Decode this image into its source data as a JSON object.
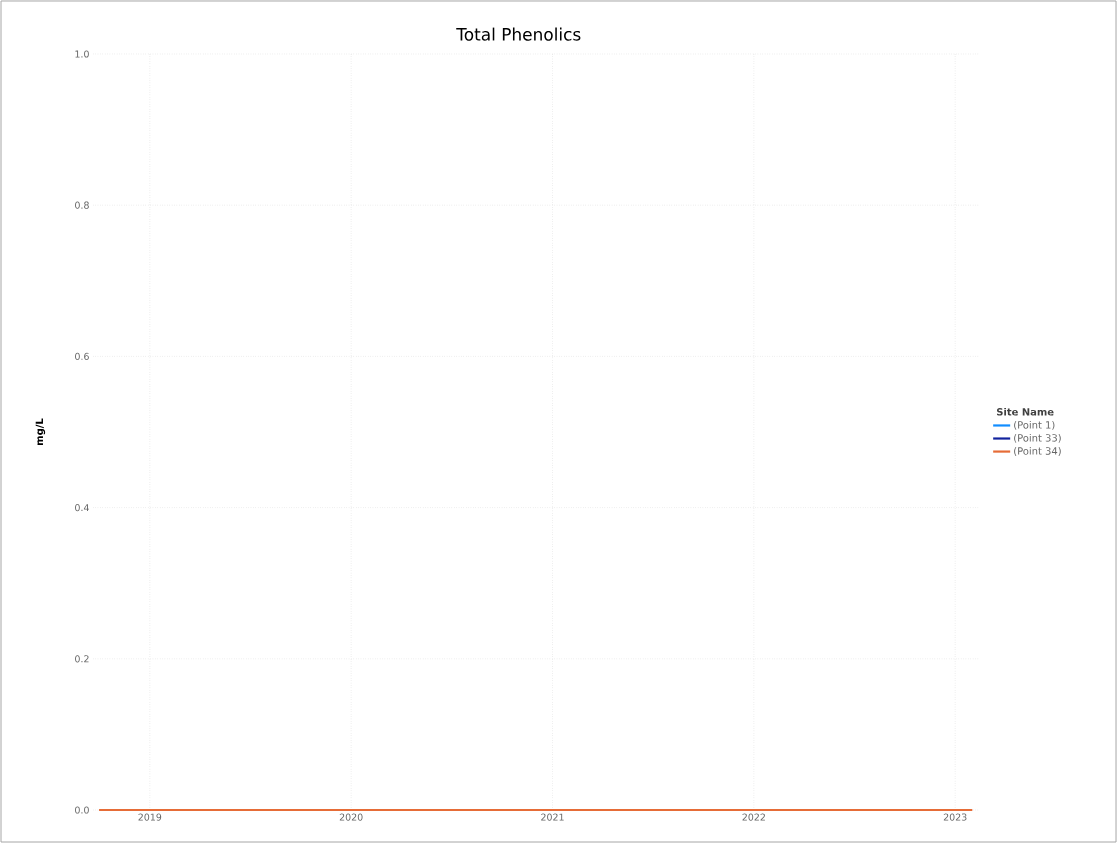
{
  "chart_data": {
    "type": "line",
    "title": "Total Phenolics",
    "ylabel": "mg/L",
    "legend_title": "Site Name",
    "x": [
      "2018-10-01",
      "2023-02-01"
    ],
    "series": [
      {
        "name": "(Point 1)",
        "color": "#118dff",
        "values": [
          null,
          null
        ]
      },
      {
        "name": "(Point 33)",
        "color": "#12239e",
        "values": [
          null,
          null
        ]
      },
      {
        "name": "(Point 34)",
        "color": "#e66c37",
        "values": [
          0,
          0
        ]
      }
    ],
    "xlim": [
      "2018-09-20",
      "2023-02-15"
    ],
    "xticks": [
      {
        "value": "2019-01-01",
        "label": "2019"
      },
      {
        "value": "2020-01-01",
        "label": "2020"
      },
      {
        "value": "2021-01-01",
        "label": "2021"
      },
      {
        "value": "2022-01-01",
        "label": "2022"
      },
      {
        "value": "2023-01-01",
        "label": "2023"
      }
    ],
    "ylim": [
      0,
      1
    ],
    "yticks": [
      {
        "value": 0,
        "label": "0.0"
      },
      0.2,
      0.4,
      0.6,
      0.8,
      {
        "value": 1,
        "label": "1.0"
      }
    ],
    "grid": true,
    "legend": "right",
    "marker": "none",
    "line_style": "solid"
  }
}
